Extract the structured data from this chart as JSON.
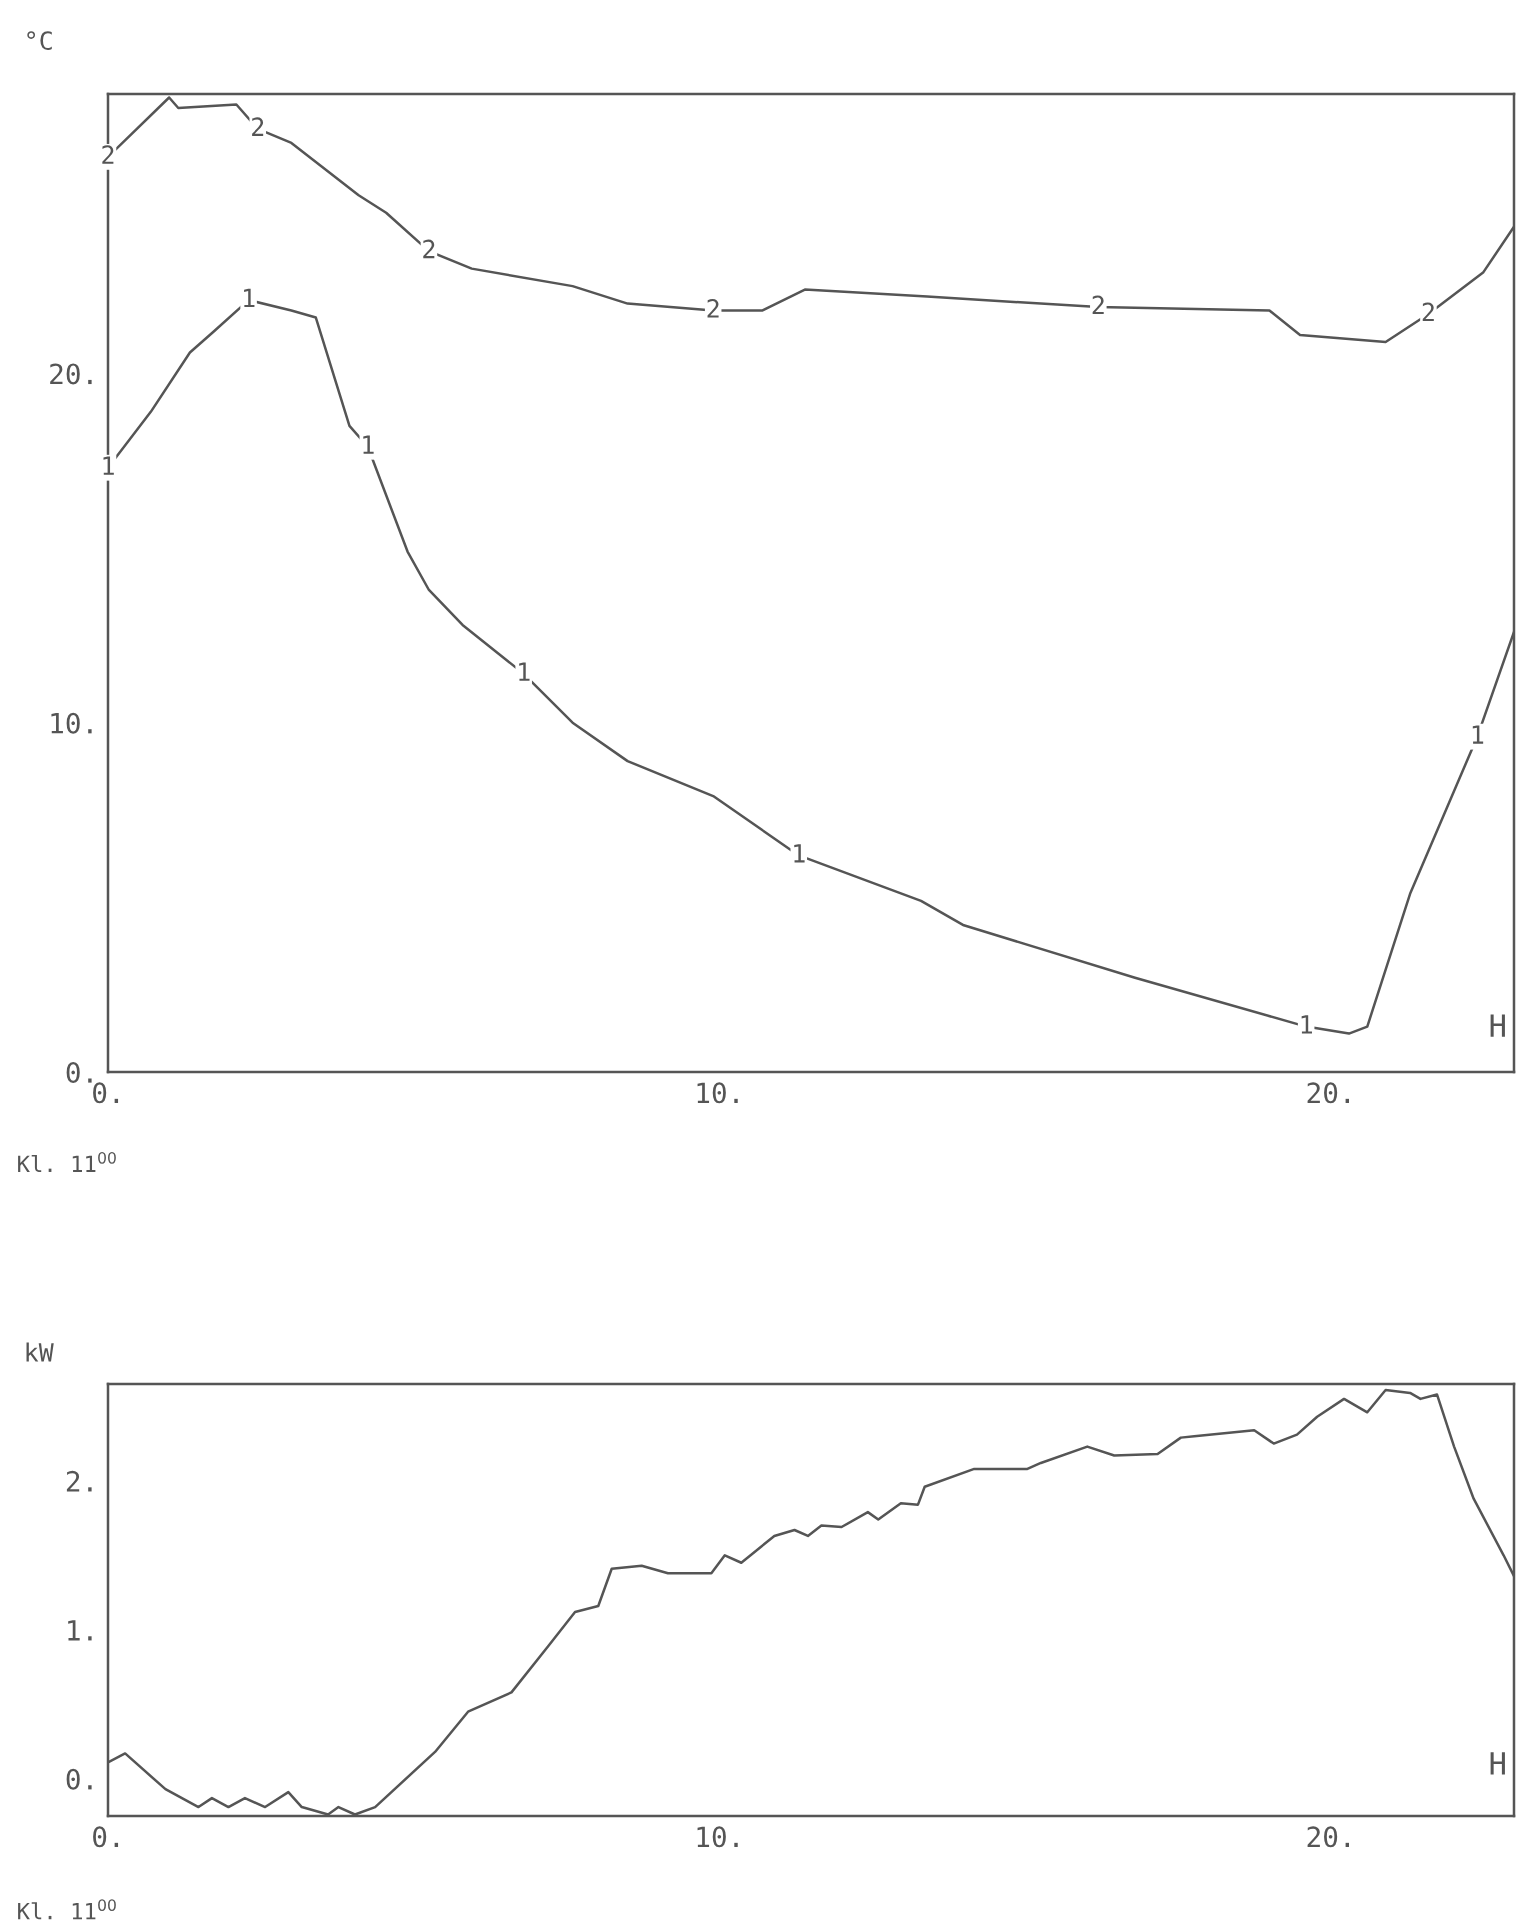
{
  "chart_data": [
    {
      "type": "line",
      "ylabel": "°C",
      "xlabel": "H",
      "annotations": [
        "Kl. 11$^{00}$"
      ],
      "xlim": [
        0,
        23
      ],
      "ylim": [
        0,
        28
      ],
      "xticks": [
        {
          "value": 0,
          "label": "0."
        },
        {
          "value": 10,
          "label": "10."
        },
        {
          "value": 20,
          "label": "20."
        }
      ],
      "yticks": [
        {
          "value": 0,
          "label": "0."
        },
        {
          "value": 10,
          "label": "10."
        },
        {
          "value": 20,
          "label": "20."
        }
      ],
      "grid": false,
      "series": [
        {
          "name": "1",
          "color": "#555555",
          "x": [
            0,
            0.7,
            1.34,
            1.73,
            2.3,
            3.0,
            3.4,
            3.95,
            4.25,
            4.9,
            5.25,
            5.8,
            6.8,
            7.6,
            8.5,
            9.9,
            11.3,
            13.3,
            14.0,
            16.8,
            19.6,
            20.3,
            20.6,
            21.3,
            22.4,
            23.0
          ],
          "values": [
            17.3,
            18.9,
            20.6,
            21.2,
            22.1,
            21.8,
            21.6,
            18.5,
            17.9,
            14.9,
            13.8,
            12.8,
            11.4,
            10.0,
            8.9,
            7.9,
            6.2,
            4.9,
            4.2,
            2.7,
            1.3,
            1.1,
            1.3,
            5.1,
            9.6,
            12.6
          ]
        },
        {
          "name": "2",
          "color": "#555555",
          "x": [
            0,
            1.0,
            1.15,
            2.1,
            2.45,
            3.0,
            4.1,
            4.55,
            5.25,
            5.95,
            7.6,
            8.5,
            9.9,
            10.7,
            11.4,
            13.4,
            16.2,
            19.0,
            19.5,
            20.9,
            21.6,
            22.5,
            23.0
          ],
          "values": [
            26.2,
            27.9,
            27.6,
            27.7,
            27.0,
            26.6,
            25.1,
            24.6,
            23.5,
            23.0,
            22.5,
            22.0,
            21.8,
            21.8,
            22.4,
            22.2,
            21.9,
            21.8,
            21.1,
            20.9,
            21.7,
            22.9,
            24.2
          ]
        }
      ]
    },
    {
      "type": "line",
      "ylabel": "kW",
      "xlabel": "H",
      "annotations": [
        "Kl. 11$^{00}$"
      ],
      "xlim": [
        0,
        23
      ],
      "ylim": [
        -0.25,
        2.65
      ],
      "xticks": [
        {
          "value": 0,
          "label": "0."
        },
        {
          "value": 10,
          "label": "10."
        },
        {
          "value": 20,
          "label": "20."
        }
      ],
      "yticks": [
        {
          "value": 0,
          "label": "0."
        },
        {
          "value": 1,
          "label": "1."
        },
        {
          "value": 2,
          "label": "2."
        }
      ],
      "grid": false,
      "series": [
        {
          "color": "#555555",
          "x": [
            0.0,
            0.28,
            0.94,
            1.48,
            1.7,
            1.97,
            2.24,
            2.57,
            2.95,
            3.17,
            3.6,
            3.77,
            4.04,
            4.37,
            5.35,
            5.89,
            6.6,
            7.2,
            7.64,
            8.02,
            8.24,
            8.73,
            9.16,
            9.87,
            10.09,
            10.36,
            10.9,
            11.23,
            11.45,
            11.67,
            12.0,
            12.43,
            12.6,
            12.97,
            13.25,
            13.36,
            14.17,
            15.04,
            15.26,
            16.02,
            16.46,
            17.17,
            17.55,
            17.77,
            18.75,
            19.07,
            19.45,
            19.78,
            20.22,
            20.6,
            20.9,
            21.3,
            21.47,
            21.74,
            22.02,
            22.34,
            22.83,
            23.0
          ],
          "values": [
            0.11,
            0.17,
            -0.07,
            -0.19,
            -0.13,
            -0.19,
            -0.13,
            -0.19,
            -0.09,
            -0.19,
            -0.24,
            -0.19,
            -0.24,
            -0.19,
            0.18,
            0.45,
            0.58,
            0.89,
            1.12,
            1.16,
            1.41,
            1.43,
            1.38,
            1.38,
            1.5,
            1.45,
            1.63,
            1.67,
            1.63,
            1.7,
            1.69,
            1.79,
            1.74,
            1.85,
            1.84,
            1.96,
            2.08,
            2.08,
            2.12,
            2.23,
            2.17,
            2.18,
            2.29,
            2.3,
            2.34,
            2.25,
            2.31,
            2.43,
            2.55,
            2.46,
            2.61,
            2.59,
            2.55,
            2.58,
            2.23,
            1.88,
            1.5,
            1.36
          ]
        }
      ]
    }
  ]
}
